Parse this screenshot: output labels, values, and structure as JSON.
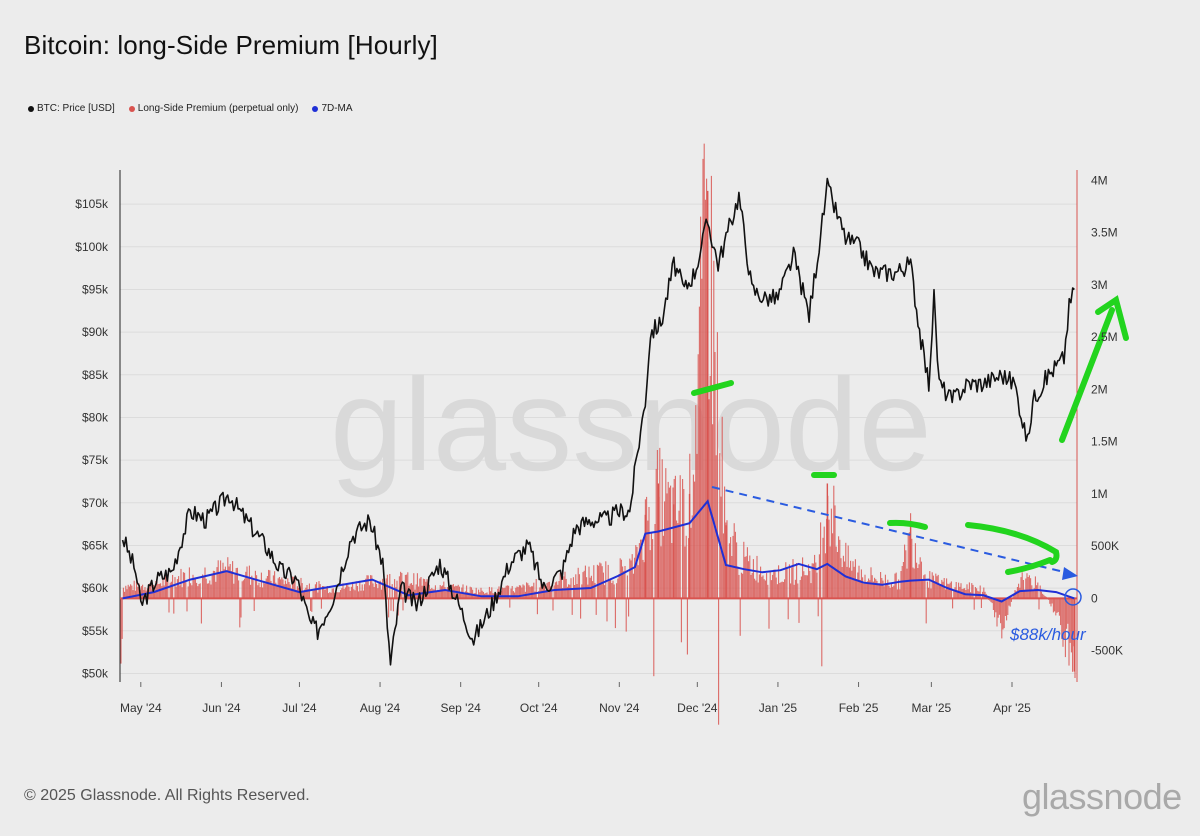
{
  "header": {
    "title": "Bitcoin: long-Side Premium [Hourly]"
  },
  "legend": {
    "items": [
      {
        "label": "BTC: Price [USD]",
        "color": "#111111"
      },
      {
        "label": "Long-Side Premium (perpetual only)",
        "color": "#d9534f"
      },
      {
        "label": "7D-MA",
        "color": "#1f2fd6"
      }
    ]
  },
  "footer": {
    "copyright": "© 2025 Glassnode. All Rights Reserved.",
    "brand": "glassnode"
  },
  "watermark": "glassnode",
  "chart_data": {
    "type": "line",
    "x_tick_labels": [
      "May '24",
      "Jun '24",
      "Jul '24",
      "Aug '24",
      "Sep '24",
      "Oct '24",
      "Nov '24",
      "Dec '24",
      "Jan '25",
      "Feb '25",
      "Mar '25",
      "Apr '25"
    ],
    "y_left": {
      "unit": "USD",
      "ylim": [
        49000,
        109000
      ],
      "ticks": [
        50000,
        55000,
        60000,
        65000,
        70000,
        75000,
        80000,
        85000,
        90000,
        95000,
        100000,
        105000
      ],
      "tick_labels": [
        "$50k",
        "$55k",
        "$60k",
        "$65k",
        "$70k",
        "$75k",
        "$80k",
        "$85k",
        "$90k",
        "$95k",
        "$100k",
        "$105k"
      ]
    },
    "y_right": {
      "ylim": [
        -800000,
        4100000
      ],
      "ticks": [
        -500000,
        0,
        500000,
        1000000,
        1500000,
        2000000,
        2500000,
        3000000,
        3500000,
        4000000
      ],
      "tick_labels": [
        "-500K",
        "0",
        "500K",
        "1M",
        "1.5M",
        "2M",
        "2.5M",
        "3M",
        "3.5M",
        "4M"
      ]
    },
    "grid": true,
    "series": [
      {
        "name": "BTC: Price [USD]",
        "axis": "left",
        "color": "#111111",
        "x": [
          "2024-04-24",
          "2024-04-29",
          "2024-05-01",
          "2024-05-07",
          "2024-05-13",
          "2024-05-20",
          "2024-05-26",
          "2024-06-04",
          "2024-06-08",
          "2024-06-13",
          "2024-06-18",
          "2024-06-24",
          "2024-06-30",
          "2024-07-05",
          "2024-07-08",
          "2024-07-14",
          "2024-07-21",
          "2024-07-28",
          "2024-08-02",
          "2024-08-05",
          "2024-08-09",
          "2024-08-15",
          "2024-08-24",
          "2024-08-30",
          "2024-09-06",
          "2024-09-13",
          "2024-09-20",
          "2024-09-27",
          "2024-10-03",
          "2024-10-10",
          "2024-10-15",
          "2024-10-21",
          "2024-10-27",
          "2024-11-01",
          "2024-11-05",
          "2024-11-08",
          "2024-11-11",
          "2024-11-13",
          "2024-11-17",
          "2024-11-22",
          "2024-11-26",
          "2024-11-30",
          "2024-12-05",
          "2024-12-09",
          "2024-12-17",
          "2024-12-22",
          "2024-12-27",
          "2025-01-01",
          "2025-01-07",
          "2025-01-13",
          "2025-01-20",
          "2025-01-27",
          "2025-02-01",
          "2025-02-07",
          "2025-02-15",
          "2025-02-21",
          "2025-02-25",
          "2025-02-28",
          "2025-03-02",
          "2025-03-04",
          "2025-03-09",
          "2025-03-15",
          "2025-03-21",
          "2025-03-28",
          "2025-04-02",
          "2025-04-07",
          "2025-04-09",
          "2025-04-15",
          "2025-04-21",
          "2025-04-23",
          "2025-04-25"
        ],
        "y": [
          66000,
          62000,
          58000,
          61000,
          62000,
          69000,
          68000,
          71000,
          69000,
          67000,
          65000,
          62000,
          61000,
          56000,
          55000,
          59000,
          66000,
          68000,
          63000,
          51000,
          60000,
          58000,
          63000,
          59000,
          54000,
          58000,
          63000,
          65000,
          60000,
          62000,
          67000,
          68000,
          68000,
          69000,
          69000,
          76000,
          82000,
          90000,
          91000,
          98000,
          95000,
          97000,
          103000,
          98000,
          106000,
          95000,
          94000,
          94000,
          99000,
          92000,
          107000,
          101000,
          100000,
          97000,
          97000,
          98000,
          89000,
          84000,
          94000,
          84000,
          82000,
          84000,
          84000,
          85000,
          84000,
          77000,
          82000,
          85000,
          87000,
          93000,
          95000
        ]
      },
      {
        "name": "Long-Side Premium (perpetual only)",
        "axis": "right",
        "color": "#d9534f",
        "x": [
          "2024-04-24",
          "2024-05-06",
          "2024-05-20",
          "2024-06-03",
          "2024-06-17",
          "2024-07-01",
          "2024-07-15",
          "2024-07-29",
          "2024-08-12",
          "2024-08-26",
          "2024-09-09",
          "2024-09-23",
          "2024-10-07",
          "2024-10-21",
          "2024-11-01",
          "2024-11-07",
          "2024-11-11",
          "2024-11-16",
          "2024-11-22",
          "2024-11-28",
          "2024-12-05",
          "2024-12-12",
          "2024-12-19",
          "2024-12-26",
          "2025-01-02",
          "2025-01-09",
          "2025-01-16",
          "2025-01-20",
          "2025-01-27",
          "2025-02-03",
          "2025-02-10",
          "2025-02-17",
          "2025-02-21",
          "2025-02-28",
          "2025-03-07",
          "2025-03-14",
          "2025-03-21",
          "2025-03-28",
          "2025-04-04",
          "2025-04-11",
          "2025-04-18",
          "2025-04-25"
        ],
        "y": [
          120000,
          150000,
          250000,
          300000,
          220000,
          150000,
          100000,
          180000,
          200000,
          120000,
          80000,
          100000,
          180000,
          250000,
          300000,
          350000,
          800000,
          1100000,
          900000,
          1000000,
          3900000,
          700000,
          400000,
          300000,
          250000,
          300000,
          320000,
          1100000,
          400000,
          250000,
          200000,
          180000,
          700000,
          200000,
          150000,
          120000,
          100000,
          -300000,
          200000,
          150000,
          -150000,
          -700000
        ]
      },
      {
        "name": "7D-MA",
        "axis": "right",
        "color": "#1f2fd6",
        "x": [
          "2024-04-24",
          "2024-05-06",
          "2024-05-20",
          "2024-06-03",
          "2024-06-17",
          "2024-07-01",
          "2024-07-15",
          "2024-07-29",
          "2024-08-12",
          "2024-08-26",
          "2024-09-09",
          "2024-09-23",
          "2024-10-07",
          "2024-10-21",
          "2024-11-01",
          "2024-11-07",
          "2024-11-11",
          "2024-11-16",
          "2024-11-22",
          "2024-11-28",
          "2024-12-05",
          "2024-12-12",
          "2024-12-19",
          "2024-12-26",
          "2025-01-02",
          "2025-01-09",
          "2025-01-16",
          "2025-01-20",
          "2025-01-27",
          "2025-02-03",
          "2025-02-10",
          "2025-02-17",
          "2025-02-21",
          "2025-02-28",
          "2025-03-07",
          "2025-03-14",
          "2025-03-21",
          "2025-03-28",
          "2025-04-04",
          "2025-04-11",
          "2025-04-18",
          "2025-04-25"
        ],
        "y": [
          0,
          60000,
          180000,
          260000,
          160000,
          60000,
          120000,
          180000,
          30000,
          80000,
          20000,
          20000,
          80000,
          100000,
          220000,
          300000,
          620000,
          640000,
          680000,
          720000,
          930000,
          320000,
          280000,
          250000,
          270000,
          330000,
          280000,
          330000,
          210000,
          150000,
          130000,
          160000,
          170000,
          180000,
          100000,
          40000,
          30000,
          -30000,
          70000,
          80000,
          60000,
          0
        ]
      }
    ],
    "annotations": [
      {
        "text": "$88k/hour",
        "color": "#2a5be0"
      }
    ]
  }
}
